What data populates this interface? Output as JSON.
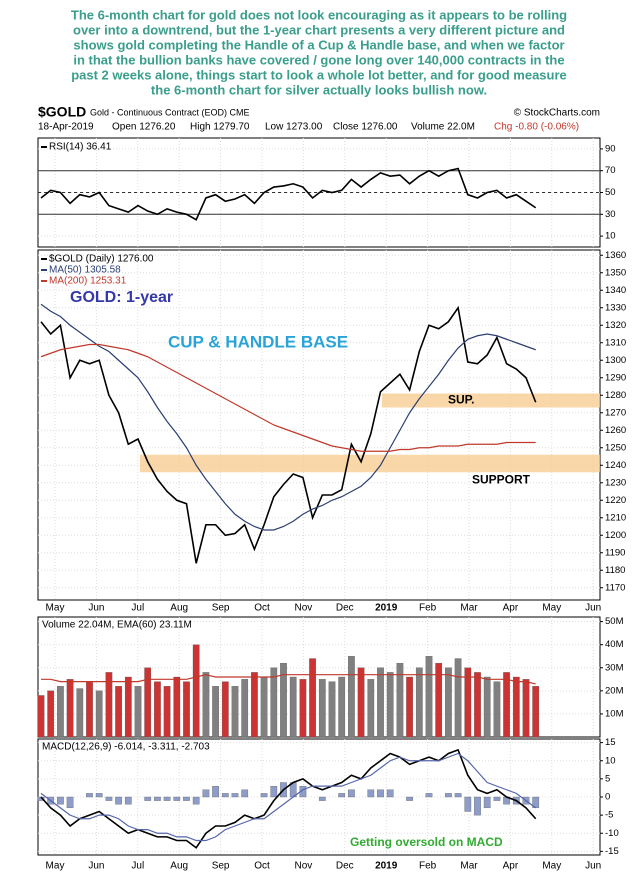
{
  "commentary": [
    "The 6-month chart for gold does not look encouraging as it appears to be rolling",
    "over into a downtrend, but the 1-year chart presents a very different picture and",
    "shows gold completing the Handle of a Cup & Handle base, and when we factor",
    "in that  the bullion banks have covered / gone long over 140,000 contracts in the",
    "past 2 weeks alone, things start to look a whole lot better, and for good measure",
    "the 6-month chart for silver actually looks bullish now."
  ],
  "chart_data": {
    "type": "stock",
    "symbol": "$GOLD",
    "name": "Gold - Continuous Contract (EOD) CME",
    "source": "© StockCharts.com",
    "quote": [
      "18-Apr-2019",
      "Open 1276.20",
      "High 1279.70",
      "Low 1273.00",
      "Close 1276.00",
      "Volume 22.0M",
      "Chg -0.80 (-0.06%)"
    ],
    "months": [
      "May",
      "Jun",
      "Jul",
      "Aug",
      "Sep",
      "Oct",
      "Nov",
      "Dec",
      "2019",
      "Feb",
      "Mar",
      "Apr",
      "May",
      "Jun"
    ],
    "grid": true,
    "panels": [
      {
        "type": "line",
        "ylim": [
          0,
          100
        ],
        "yticks": [
          10,
          30,
          50,
          70,
          90
        ],
        "levels": [
          30,
          50,
          70
        ],
        "series": [
          {
            "name": "RSI(14) 36.41",
            "color": "#000000",
            "type": "line",
            "values": [
              45,
              52,
              50,
              40,
              48,
              46,
              50,
              38,
              35,
              32,
              38,
              33,
              30,
              35,
              32,
              30,
              25,
              45,
              48,
              42,
              44,
              48,
              40,
              50,
              55,
              56,
              58,
              55,
              45,
              52,
              50,
              52,
              62,
              55,
              62,
              68,
              65,
              66,
              58,
              65,
              70,
              65,
              70,
              72,
              48,
              45,
              50,
              52,
              45,
              48,
              42,
              36
            ]
          }
        ]
      },
      {
        "type": "line",
        "ylim": [
          1163,
          1363
        ],
        "yticks": [
          1170,
          1180,
          1190,
          1200,
          1210,
          1220,
          1230,
          1240,
          1250,
          1260,
          1270,
          1280,
          1290,
          1300,
          1310,
          1320,
          1330,
          1340,
          1350,
          1360
        ],
        "annotations": [
          "GOLD: 1-year",
          "CUP & HANDLE BASE"
        ],
        "bands": [
          {
            "label": "SUP.",
            "from": 1273,
            "to": 1281
          },
          {
            "label": "SUPPORT",
            "from": 1236,
            "to": 1246
          }
        ],
        "series": [
          {
            "name": "$GOLD (Daily) 1276.00",
            "color": "#000000",
            "type": "line",
            "values": [
              1322,
              1315,
              1320,
              1290,
              1300,
              1298,
              1300,
              1280,
              1270,
              1252,
              1255,
              1242,
              1232,
              1225,
              1220,
              1218,
              1184,
              1206,
              1206,
              1200,
              1201,
              1206,
              1192,
              1206,
              1222,
              1229,
              1235,
              1233,
              1210,
              1223,
              1223,
              1226,
              1252,
              1242,
              1258,
              1282,
              1287,
              1292,
              1283,
              1305,
              1320,
              1318,
              1322,
              1330,
              1299,
              1298,
              1303,
              1313,
              1298,
              1295,
              1290,
              1276
            ]
          },
          {
            "name": "MA(50) 1305.58",
            "color": "#2b3f73",
            "type": "line",
            "values": [
              1332,
              1328,
              1325,
              1320,
              1316,
              1312,
              1308,
              1305,
              1300,
              1295,
              1290,
              1282,
              1273,
              1265,
              1258,
              1250,
              1240,
              1232,
              1225,
              1218,
              1212,
              1208,
              1205,
              1203,
              1203,
              1205,
              1208,
              1212,
              1215,
              1217,
              1220,
              1222,
              1225,
              1228,
              1233,
              1240,
              1250,
              1260,
              1270,
              1278,
              1285,
              1292,
              1300,
              1307,
              1312,
              1314,
              1315,
              1314,
              1312,
              1310,
              1308,
              1306
            ]
          },
          {
            "name": "MA(200) 1253.31",
            "color": "#c0392b",
            "type": "line",
            "values": [
              1302,
              1304,
              1306,
              1307,
              1308,
              1309,
              1309,
              1308,
              1307,
              1306,
              1304,
              1302,
              1299,
              1296,
              1293,
              1290,
              1287,
              1284,
              1281,
              1278,
              1275,
              1272,
              1269,
              1266,
              1263,
              1261,
              1259,
              1257,
              1255,
              1253,
              1251,
              1250,
              1249,
              1248,
              1248,
              1248,
              1248,
              1249,
              1249,
              1250,
              1250,
              1251,
              1251,
              1251,
              1252,
              1252,
              1252,
              1252,
              1253,
              1253,
              1253,
              1253
            ]
          }
        ]
      },
      {
        "type": "bar",
        "title": "Volume 22.04M, EMA(60) 23.11M",
        "ylim": [
          0,
          52000000
        ],
        "yticks": [
          {
            "value": 10000000,
            "label": "10M"
          },
          {
            "value": 20000000,
            "label": "20M"
          },
          {
            "value": 30000000,
            "label": "30M"
          },
          {
            "value": 40000000,
            "label": "40M"
          },
          {
            "value": 50000000,
            "label": "50M"
          }
        ],
        "series": [
          {
            "color": "#cc3333",
            "up_color": "#808080",
            "type": "bar",
            "values": [
              18000000,
              20000000,
              22000000,
              25000000,
              21000000,
              24000000,
              20000000,
              28000000,
              22000000,
              26000000,
              22000000,
              30000000,
              24000000,
              22000000,
              26000000,
              24000000,
              40000000,
              28000000,
              22000000,
              24000000,
              22000000,
              25000000,
              28000000,
              26000000,
              30000000,
              32000000,
              26000000,
              25000000,
              34000000,
              25000000,
              24000000,
              26000000,
              35000000,
              30000000,
              25000000,
              30000000,
              28000000,
              32000000,
              26000000,
              30000000,
              35000000,
              32000000,
              30000000,
              34000000,
              30000000,
              28000000,
              26000000,
              24000000,
              28000000,
              26000000,
              25000000,
              22000000
            ]
          },
          {
            "color": "#c0392b",
            "type": "line",
            "values": [
              25000000,
              25000000,
              24000000,
              24000000,
              24000000,
              24000000,
              24000000,
              24000000,
              24000000,
              24000000,
              24000000,
              25000000,
              25000000,
              25000000,
              25000000,
              25000000,
              26000000,
              27000000,
              26000000,
              26000000,
              26000000,
              26000000,
              26000000,
              26000000,
              26000000,
              27000000,
              27000000,
              27000000,
              27000000,
              27000000,
              27000000,
              27000000,
              27000000,
              27000000,
              27000000,
              27000000,
              27000000,
              27000000,
              27000000,
              27000000,
              27000000,
              27000000,
              27000000,
              26000000,
              26000000,
              26000000,
              25000000,
              25000000,
              25000000,
              24000000,
              24000000,
              23000000
            ]
          }
        ]
      },
      {
        "type": "line",
        "title": "MACD(12,26,9) -6.014, -3.311, -2.703",
        "ylim": [
          -16,
          16
        ],
        "yticks": [
          15,
          10,
          5,
          0,
          -5,
          -10,
          -15
        ],
        "annotations": [
          "Getting oversold on MACD"
        ],
        "series": [
          {
            "color": "#8e9cc8",
            "type": "bar",
            "values": [
              -1,
              -2,
              -2,
              -3,
              0,
              1,
              1,
              -1,
              -2,
              -2,
              0,
              -1,
              -1,
              -1,
              -1,
              -1,
              -2,
              2,
              3,
              1,
              1,
              2,
              0,
              1,
              3,
              4,
              4,
              3,
              0,
              -1,
              0,
              1,
              2,
              0,
              2,
              2,
              2,
              0,
              -1,
              0,
              1,
              0,
              1,
              1,
              -4,
              -5,
              -3,
              -1,
              -2,
              -2,
              -2,
              -3
            ]
          },
          {
            "color": "#000000",
            "type": "line",
            "values": [
              0,
              -3,
              -5,
              -8,
              -6,
              -5,
              -4,
              -6,
              -8,
              -10,
              -9,
              -10,
              -11,
              -11,
              -12,
              -12,
              -14,
              -10,
              -8,
              -8,
              -7,
              -5,
              -6,
              -5,
              -1,
              2,
              4,
              5,
              3,
              2,
              3,
              4,
              6,
              5,
              8,
              10,
              12,
              11,
              9,
              10,
              11,
              10,
              12,
              13,
              6,
              2,
              1,
              2,
              0,
              -1,
              -3,
              -6
            ]
          },
          {
            "color": "#5566aa",
            "type": "line",
            "values": [
              1,
              -1,
              -3,
              -5,
              -6,
              -6,
              -5,
              -5,
              -6,
              -8,
              -9,
              -9,
              -10,
              -10,
              -11,
              -11,
              -12,
              -12,
              -11,
              -9,
              -8,
              -7,
              -6,
              -6,
              -4,
              -2,
              0,
              2,
              3,
              3,
              3,
              3,
              4,
              5,
              6,
              8,
              10,
              11,
              10,
              10,
              10,
              10,
              11,
              12,
              10,
              7,
              4,
              3,
              2,
              1,
              -1,
              -3
            ]
          }
        ]
      }
    ]
  }
}
